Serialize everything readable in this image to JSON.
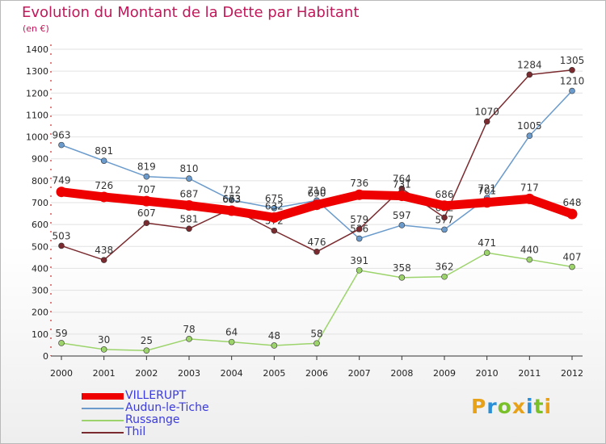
{
  "title": "Evolution du Montant de la Dette par Habitant",
  "subtitle": "(en €)",
  "logo": {
    "text": "Proxiti",
    "colors": [
      "#e8a21a",
      "#2a8fd6",
      "#79c02a",
      "#e8a21a",
      "#2a8fd6",
      "#79c02a",
      "#e8a21a"
    ]
  },
  "chart_data": {
    "type": "line",
    "title": "Evolution du Montant de la Dette par Habitant",
    "subtitle": "(en €)",
    "x": [
      "2000",
      "2001",
      "2002",
      "2003",
      "2004",
      "2005",
      "2006",
      "2007",
      "2008",
      "2009",
      "2010",
      "2011",
      "2012"
    ],
    "ylim": [
      0,
      1400
    ],
    "yticks": [
      "0",
      "100",
      "200",
      "300",
      "400",
      "500",
      "600",
      "700",
      "800",
      "900",
      "1000",
      "1100",
      "1200",
      "1300",
      "1400"
    ],
    "grid": true,
    "legend": "bottom-left",
    "series": [
      {
        "name": "VILLERUPT",
        "color": "#ee0000",
        "values": [
          749,
          726,
          707,
          687,
          663,
          632,
          690,
          736,
          731,
          686,
          701,
          717,
          648
        ]
      },
      {
        "name": "Audun-le-Tiche",
        "color": "#6a9bcc",
        "values": [
          963,
          891,
          819,
          810,
          712,
          675,
          710,
          536,
          597,
          577,
          721,
          1005,
          1210
        ]
      },
      {
        "name": "Russange",
        "color": "#9cd46b",
        "values": [
          59,
          30,
          25,
          78,
          64,
          48,
          58,
          391,
          358,
          362,
          471,
          440,
          407
        ]
      },
      {
        "name": "Thil",
        "color": "#7b2b2f",
        "values": [
          503,
          438,
          607,
          581,
          673,
          572,
          476,
          579,
          764,
          632,
          1070,
          1284,
          1305
        ]
      }
    ]
  }
}
